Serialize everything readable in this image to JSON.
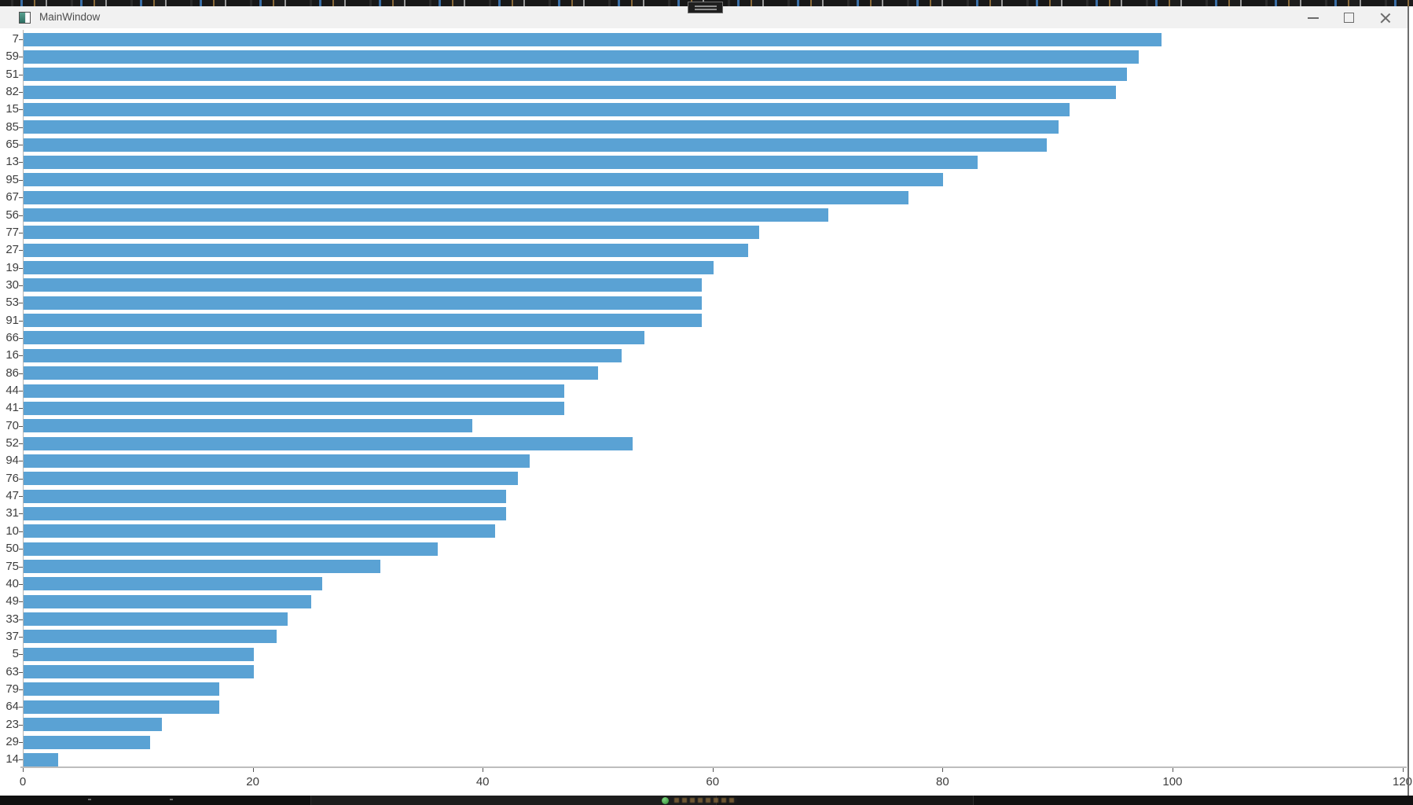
{
  "window": {
    "title": "MainWindow",
    "icon": "app-icon",
    "controls": [
      {
        "name": "minimize"
      },
      {
        "name": "maximize"
      },
      {
        "name": "close"
      }
    ]
  },
  "chart_data": {
    "type": "bar",
    "orientation": "horizontal",
    "title": "",
    "xlabel": "",
    "ylabel": "",
    "grid": false,
    "legend": null,
    "xlim": [
      0,
      120
    ],
    "x_ticks": [
      0,
      20,
      40,
      60,
      80,
      100,
      120
    ],
    "categories": [
      "7",
      "59",
      "51",
      "82",
      "15",
      "85",
      "65",
      "13",
      "95",
      "67",
      "56",
      "77",
      "27",
      "19",
      "30",
      "53",
      "91",
      "66",
      "16",
      "86",
      "44",
      "41",
      "70",
      "52",
      "94",
      "76",
      "47",
      "31",
      "10",
      "50",
      "75",
      "40",
      "49",
      "33",
      "37",
      "5",
      "63",
      "79",
      "64",
      "23",
      "29",
      "14"
    ],
    "values": [
      99,
      97,
      96,
      95,
      91,
      90,
      89,
      83,
      80,
      77,
      70,
      64,
      63,
      60,
      59,
      59,
      59,
      54,
      52,
      50,
      47,
      47,
      39,
      53,
      44,
      43,
      42,
      42,
      41,
      36,
      31,
      26,
      25,
      23,
      22,
      20,
      20,
      17,
      17,
      12,
      11,
      3
    ],
    "bar_color": "#5aa2d4",
    "axis_color": "#bdbdbd",
    "tick_label_color": "#3d3d3d"
  },
  "background_slivers": {
    "top": {
      "description-icon": "occluded-window-edge"
    },
    "bottom": {
      "green_orb_icon": "green-orb-icon"
    }
  }
}
